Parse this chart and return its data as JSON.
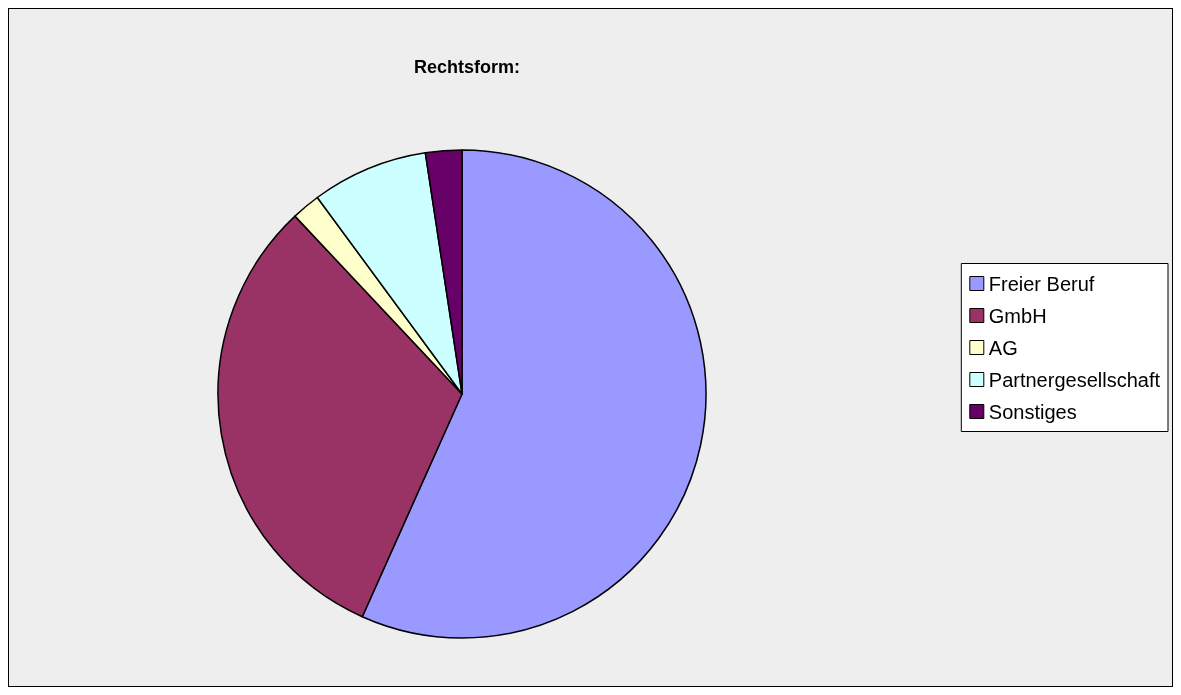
{
  "chart_data": {
    "type": "pie",
    "title": "Rechtsform:",
    "categories": [
      "Freier Beruf",
      "GmbH",
      "AG",
      "Partnergesellschaft",
      "Sonstiges"
    ],
    "values": [
      56.7,
      31.3,
      1.9,
      7.7,
      2.4
    ],
    "colors": [
      "#9999ff",
      "#993366",
      "#ffffcc",
      "#ccffff",
      "#660066"
    ],
    "legend": "right"
  }
}
